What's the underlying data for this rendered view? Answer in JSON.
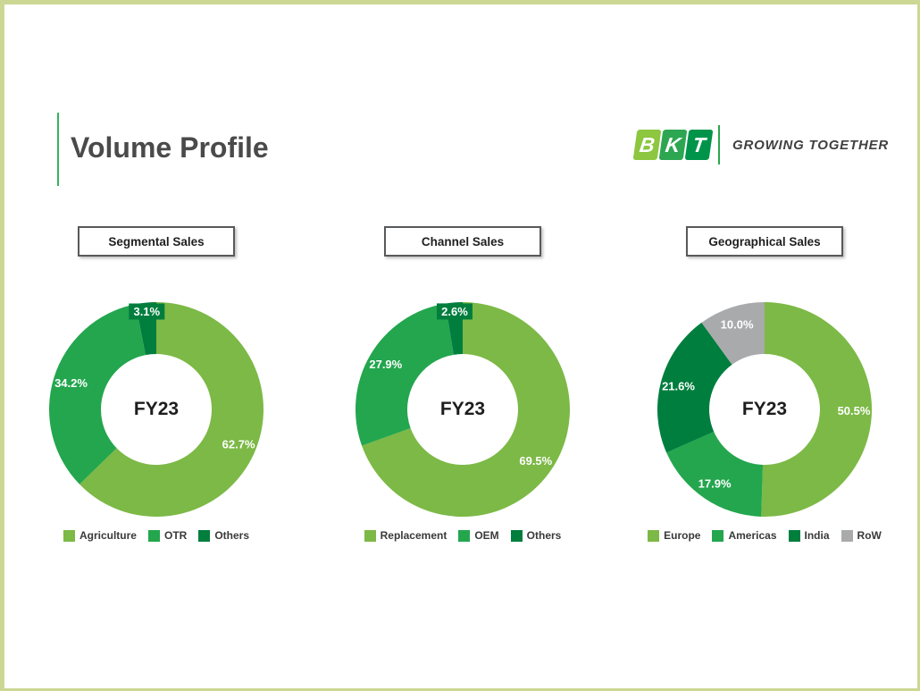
{
  "page": {
    "title": "Volume Profile"
  },
  "brand": {
    "letters": [
      {
        "char": "B",
        "color": "#8dc63f"
      },
      {
        "char": "K",
        "color": "#2da652"
      },
      {
        "char": "T",
        "color": "#00944a"
      }
    ],
    "tagline": "GROWING TOGETHER"
  },
  "colors": {
    "slide_border": "#ccd794",
    "title_accent": "#35b45c",
    "title_text": "#4a4a4a",
    "header_box_border": "#58595b",
    "legend_text": "#3a3a3a",
    "value_label_text": "#ffffff",
    "center_label_text": "#1d1d1d",
    "palette_light_green": "#7cb946",
    "palette_mid_green": "#23a64e",
    "palette_dark_green": "#007e3e",
    "palette_gray": "#a9aaac"
  },
  "chart_data": [
    {
      "type": "pie",
      "subtype": "donut",
      "title": "Segmental Sales",
      "center_label": "FY23",
      "legend_position": "bottom",
      "start_angle_deg": 0,
      "direction": "clockwise",
      "labels": [
        "Agriculture",
        "OTR",
        "Others"
      ],
      "values": [
        62.7,
        34.2,
        3.1
      ],
      "value_labels": [
        "62.7%",
        "34.2%",
        "3.1%"
      ],
      "colors": [
        "#7cb946",
        "#23a64e",
        "#007e3e"
      ]
    },
    {
      "type": "pie",
      "subtype": "donut",
      "title": "Channel Sales",
      "center_label": "FY23",
      "legend_position": "bottom",
      "start_angle_deg": 0,
      "direction": "clockwise",
      "labels": [
        "Replacement",
        "OEM",
        "Others"
      ],
      "values": [
        69.5,
        27.9,
        2.6
      ],
      "value_labels": [
        "69.5%",
        "27.9%",
        "2.6%"
      ],
      "colors": [
        "#7cb946",
        "#23a64e",
        "#007e3e"
      ]
    },
    {
      "type": "pie",
      "subtype": "donut",
      "title": "Geographical Sales",
      "center_label": "FY23",
      "legend_position": "bottom",
      "start_angle_deg": 0,
      "direction": "clockwise",
      "labels": [
        "Europe",
        "Americas",
        "India",
        "RoW"
      ],
      "values": [
        50.5,
        17.9,
        21.6,
        10.0
      ],
      "value_labels": [
        "50.5%",
        "17.9%",
        "21.6%",
        "10.0%"
      ],
      "colors": [
        "#7cb946",
        "#23a64e",
        "#007e3e",
        "#a9aaac"
      ]
    }
  ]
}
